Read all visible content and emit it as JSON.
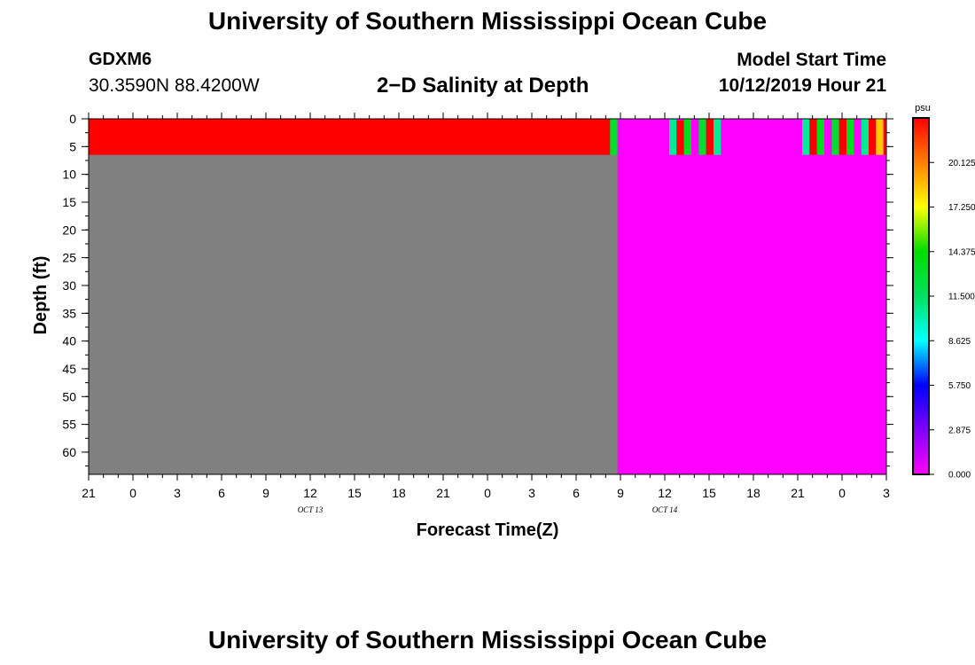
{
  "header": {
    "title": "University of Southern Mississippi Ocean Cube",
    "station_id": "GDXM6",
    "station_coords": "30.3590N 88.4200W",
    "plot_title": "2−D Salinity at Depth",
    "start_label": "Model Start Time",
    "start_value": "10/12/2019 Hour 21"
  },
  "footer": {
    "title": "University of Southern Mississippi Ocean Cube"
  },
  "chart_data": {
    "type": "heatmap",
    "title": "2−D Salinity at Depth",
    "xlabel": "Forecast Time(Z)",
    "ylabel": "Depth (ft)",
    "xlim": [
      0,
      54
    ],
    "ylim": [
      0,
      64
    ],
    "y_inverted": true,
    "x_ticks": [
      0,
      3,
      6,
      9,
      12,
      15,
      18,
      21,
      24,
      27,
      30,
      33,
      36,
      39,
      42,
      45,
      48,
      51,
      54
    ],
    "x_tick_labels": [
      "21",
      "0",
      "3",
      "6",
      "9",
      "12",
      "15",
      "18",
      "21",
      "0",
      "3",
      "6",
      "9",
      "12",
      "15",
      "18",
      "21",
      "0",
      "3"
    ],
    "x_minor_step": 1,
    "date_labels": [
      {
        "x": 15,
        "text": "OCT 13"
      },
      {
        "x": 39,
        "text": "OCT 14"
      }
    ],
    "y_ticks": [
      0,
      5,
      10,
      15,
      20,
      25,
      30,
      35,
      40,
      45,
      50,
      55,
      60
    ],
    "y_minor_step": 2.5,
    "background_color": "#808080",
    "colorbar": {
      "label": "psu",
      "min": 0,
      "max": 23,
      "ticks": [
        0,
        2.875,
        5.75,
        8.625,
        11.5,
        14.375,
        17.25,
        20.125
      ],
      "tick_labels": [
        "0.000",
        "2.875",
        "5.750",
        "8.625",
        "11.500",
        "14.375",
        "17.250",
        "20.125"
      ]
    },
    "cells": [
      {
        "x0": 0,
        "x1": 35.3,
        "y0": 0,
        "y1": 6.5,
        "value": 23.0
      },
      {
        "x0": 35.3,
        "x1": 35.8,
        "y0": 0,
        "y1": 6.5,
        "value": 13.0
      },
      {
        "x0": 35.8,
        "x1": 54,
        "y0": 0,
        "y1": 64,
        "value": 0
      },
      {
        "x0": 39.3,
        "x1": 39.8,
        "y0": 0,
        "y1": 6.5,
        "value": 10.5
      },
      {
        "x0": 39.8,
        "x1": 40.3,
        "y0": 0.3,
        "y1": 6.5,
        "value": 23.0
      },
      {
        "x0": 40.3,
        "x1": 40.8,
        "y0": 0,
        "y1": 6.5,
        "value": 13.5
      },
      {
        "x0": 41.3,
        "x1": 41.8,
        "y0": 0,
        "y1": 6.5,
        "value": 13.0
      },
      {
        "x0": 41.8,
        "x1": 42.3,
        "y0": 0,
        "y1": 6.5,
        "value": 23.0
      },
      {
        "x0": 42.3,
        "x1": 42.8,
        "y0": 0,
        "y1": 6.5,
        "value": 10.5
      },
      {
        "x0": 48.3,
        "x1": 48.8,
        "y0": 0,
        "y1": 6.5,
        "value": 10.5
      },
      {
        "x0": 48.8,
        "x1": 49.3,
        "y0": 0,
        "y1": 6.5,
        "value": 23.0
      },
      {
        "x0": 49.3,
        "x1": 49.8,
        "y0": 0,
        "y1": 6.5,
        "value": 13.5
      },
      {
        "x0": 50.3,
        "x1": 50.8,
        "y0": 0,
        "y1": 6.5,
        "value": 13.0
      },
      {
        "x0": 50.8,
        "x1": 51.3,
        "y0": 0,
        "y1": 6.5,
        "value": 23.0
      },
      {
        "x0": 51.3,
        "x1": 51.8,
        "y0": 0,
        "y1": 6.5,
        "value": 13.5
      },
      {
        "x0": 52.3,
        "x1": 52.8,
        "y0": 0,
        "y1": 6.5,
        "value": 10.5
      },
      {
        "x0": 52.8,
        "x1": 53.3,
        "y0": 0,
        "y1": 6.5,
        "value": 23.0
      },
      {
        "x0": 53.3,
        "x1": 53.8,
        "y0": 0,
        "y1": 6.5,
        "value": 18.5
      },
      {
        "x0": 53.8,
        "x1": 54,
        "y0": 0,
        "y1": 6.5,
        "value": 23.0
      }
    ]
  }
}
